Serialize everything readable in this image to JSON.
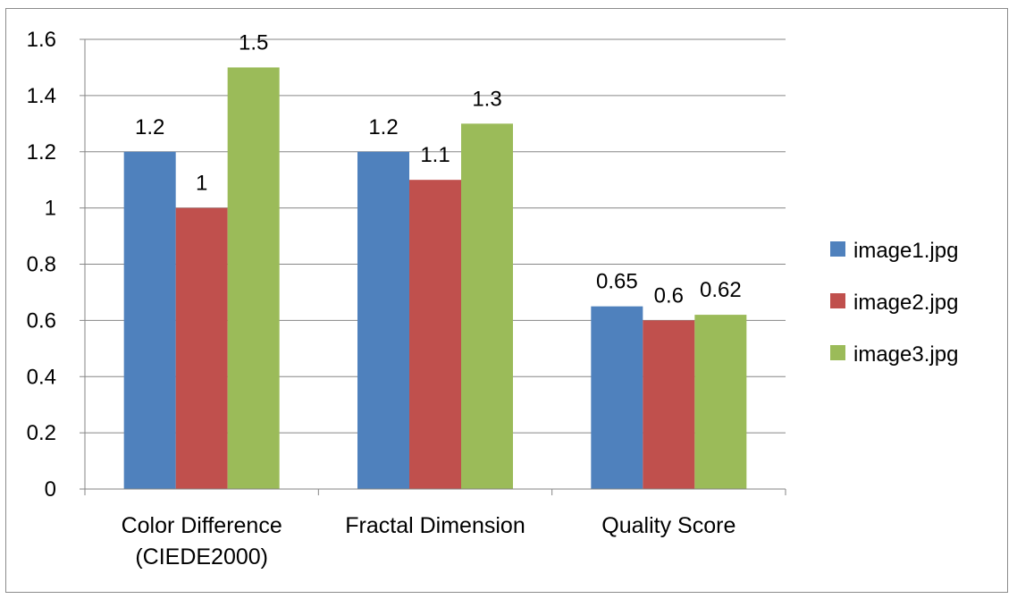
{
  "chart_data": {
    "type": "bar",
    "categories": [
      [
        "Color Difference",
        "(CIEDE2000)"
      ],
      [
        "Fractal Dimension"
      ],
      [
        "Quality Score"
      ]
    ],
    "series": [
      {
        "name": "image1.jpg",
        "color": "#4f81bd",
        "values": [
          1.2,
          1.2,
          0.65
        ],
        "labels": [
          "1.2",
          "1.2",
          "0.65"
        ]
      },
      {
        "name": "image2.jpg",
        "color": "#c0504d",
        "values": [
          1.0,
          1.1,
          0.6
        ],
        "labels": [
          "1",
          "1.1",
          "0.6"
        ]
      },
      {
        "name": "image3.jpg",
        "color": "#9bbb59",
        "values": [
          1.5,
          1.3,
          0.62
        ],
        "labels": [
          "1.5",
          "1.3",
          "0.62"
        ]
      }
    ],
    "ylim": [
      0,
      1.6
    ],
    "yticks": [
      "0",
      "0.2",
      "0.4",
      "0.6",
      "0.8",
      "1",
      "1.2",
      "1.4",
      "1.6"
    ],
    "grid": true,
    "legend_position": "right",
    "title": "",
    "xlabel": "",
    "ylabel": ""
  }
}
